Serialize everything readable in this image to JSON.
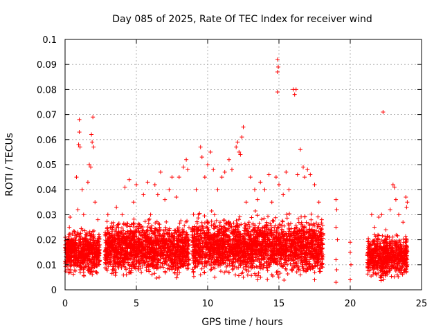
{
  "chart_data": {
    "type": "scatter",
    "title": "Day 085 of 2025, Rate Of TEC Index for receiver wind",
    "xlabel": "GPS time / hours",
    "ylabel": "ROTI / TECUs",
    "xlim": [
      0,
      25
    ],
    "ylim": [
      0,
      0.1
    ],
    "xticks": [
      0,
      5,
      10,
      15,
      20,
      25
    ],
    "yticks": [
      0,
      0.01,
      0.02,
      0.03,
      0.04,
      0.05,
      0.06,
      0.07,
      0.08,
      0.09,
      0.1
    ],
    "xtick_labels": [
      "0",
      "5",
      "10",
      "15",
      "20",
      "25"
    ],
    "ytick_labels": [
      "0",
      "0.01",
      "0.02",
      "0.03",
      "0.04",
      "0.05",
      "0.06",
      "0.07",
      "0.08",
      "0.09",
      "0.1"
    ],
    "grid": true,
    "marker": "+",
    "marker_color": "#ff0000",
    "series": [
      {
        "points": [
          [
            0.1,
            0.012
          ],
          [
            0.2,
            0.018
          ],
          [
            0.3,
            0.025
          ],
          [
            0.35,
            0.029
          ],
          [
            0.5,
            0.015
          ],
          [
            0.6,
            0.02
          ],
          [
            0.8,
            0.045
          ],
          [
            0.9,
            0.032
          ],
          [
            1.0,
            0.068
          ],
          [
            1.0,
            0.063
          ],
          [
            0.95,
            0.058
          ],
          [
            1.05,
            0.057
          ],
          [
            1.2,
            0.04
          ],
          [
            1.3,
            0.03
          ],
          [
            1.5,
            0.022
          ],
          [
            1.6,
            0.043
          ],
          [
            1.7,
            0.05
          ],
          [
            1.8,
            0.049
          ],
          [
            1.85,
            0.062
          ],
          [
            1.9,
            0.059
          ],
          [
            1.95,
            0.069
          ],
          [
            2.0,
            0.057
          ],
          [
            2.1,
            0.035
          ],
          [
            2.3,
            0.028
          ],
          [
            2.4,
            0.018
          ],
          [
            0.4,
            0.008
          ],
          [
            0.7,
            0.01
          ],
          [
            1.1,
            0.009
          ],
          [
            1.4,
            0.011
          ],
          [
            2.2,
            0.012
          ],
          [
            3.0,
            0.03
          ],
          [
            3.3,
            0.025
          ],
          [
            3.6,
            0.033
          ],
          [
            4.0,
            0.03
          ],
          [
            4.2,
            0.041
          ],
          [
            4.5,
            0.044
          ],
          [
            4.8,
            0.035
          ],
          [
            5.0,
            0.042
          ],
          [
            5.2,
            0.026
          ],
          [
            5.5,
            0.038
          ],
          [
            5.8,
            0.043
          ],
          [
            6.0,
            0.03
          ],
          [
            6.3,
            0.042
          ],
          [
            6.5,
            0.038
          ],
          [
            6.7,
            0.047
          ],
          [
            7.0,
            0.036
          ],
          [
            7.3,
            0.04
          ],
          [
            7.5,
            0.045
          ],
          [
            7.8,
            0.037
          ],
          [
            8.0,
            0.045
          ],
          [
            8.3,
            0.049
          ],
          [
            8.5,
            0.052
          ],
          [
            8.6,
            0.048
          ],
          [
            3.5,
            0.008
          ],
          [
            4.3,
            0.006
          ],
          [
            5.7,
            0.009
          ],
          [
            6.6,
            0.005
          ],
          [
            7.7,
            0.007
          ],
          [
            8.2,
            0.01
          ],
          [
            9.2,
            0.04
          ],
          [
            9.5,
            0.057
          ],
          [
            9.6,
            0.053
          ],
          [
            9.8,
            0.045
          ],
          [
            10.0,
            0.05
          ],
          [
            10.2,
            0.055
          ],
          [
            10.4,
            0.048
          ],
          [
            10.7,
            0.04
          ],
          [
            11.0,
            0.045
          ],
          [
            11.2,
            0.047
          ],
          [
            11.5,
            0.052
          ],
          [
            11.7,
            0.048
          ],
          [
            12.0,
            0.057
          ],
          [
            12.1,
            0.059
          ],
          [
            12.2,
            0.055
          ],
          [
            12.3,
            0.054
          ],
          [
            12.4,
            0.061
          ],
          [
            12.5,
            0.065
          ],
          [
            12.7,
            0.035
          ],
          [
            13.0,
            0.045
          ],
          [
            13.3,
            0.04
          ],
          [
            13.5,
            0.036
          ],
          [
            13.7,
            0.043
          ],
          [
            14.0,
            0.04
          ],
          [
            14.3,
            0.046
          ],
          [
            14.5,
            0.035
          ],
          [
            14.8,
            0.045
          ],
          [
            14.9,
            0.092
          ],
          [
            14.95,
            0.089
          ],
          [
            14.9,
            0.087
          ],
          [
            14.9,
            0.079
          ],
          [
            15.0,
            0.042
          ],
          [
            15.3,
            0.038
          ],
          [
            15.5,
            0.047
          ],
          [
            15.7,
            0.04
          ],
          [
            16.0,
            0.08
          ],
          [
            16.1,
            0.078
          ],
          [
            16.2,
            0.08
          ],
          [
            16.3,
            0.046
          ],
          [
            16.5,
            0.056
          ],
          [
            16.7,
            0.049
          ],
          [
            16.8,
            0.045
          ],
          [
            17.0,
            0.048
          ],
          [
            17.2,
            0.046
          ],
          [
            17.5,
            0.042
          ],
          [
            17.8,
            0.035
          ],
          [
            18.0,
            0.028
          ],
          [
            9.5,
            0.006
          ],
          [
            10.5,
            0.005
          ],
          [
            11.5,
            0.007
          ],
          [
            12.5,
            0.005
          ],
          [
            13.5,
            0.004
          ],
          [
            14.5,
            0.006
          ],
          [
            15.5,
            0.008
          ],
          [
            16.5,
            0.006
          ],
          [
            17.5,
            0.004
          ],
          [
            19.0,
            0.036
          ],
          [
            19.05,
            0.032
          ],
          [
            19.0,
            0.025
          ],
          [
            19.1,
            0.02
          ],
          [
            19.0,
            0.012
          ],
          [
            19.05,
            0.008
          ],
          [
            19.0,
            0.003
          ],
          [
            20.0,
            0.019
          ],
          [
            20.0,
            0.015
          ],
          [
            20.05,
            0.01
          ],
          [
            20.0,
            0.004
          ],
          [
            21.5,
            0.03
          ],
          [
            21.7,
            0.025
          ],
          [
            22.0,
            0.029
          ],
          [
            22.2,
            0.03
          ],
          [
            22.3,
            0.071
          ],
          [
            22.5,
            0.024
          ],
          [
            22.8,
            0.032
          ],
          [
            23.0,
            0.042
          ],
          [
            23.1,
            0.041
          ],
          [
            23.2,
            0.036
          ],
          [
            23.4,
            0.03
          ],
          [
            23.7,
            0.027
          ],
          [
            23.9,
            0.037
          ],
          [
            24.0,
            0.035
          ],
          [
            23.95,
            0.033
          ],
          [
            21.6,
            0.006
          ],
          [
            22.1,
            0.005
          ],
          [
            22.6,
            0.007
          ],
          [
            23.3,
            0.006
          ],
          [
            23.8,
            0.008
          ]
        ],
        "dense_bands": [
          {
            "x": [
              0.0,
              2.45
            ],
            "y": [
              0.004,
              0.026
            ]
          },
          {
            "x": [
              2.8,
              8.7
            ],
            "y": [
              0.003,
              0.03
            ]
          },
          {
            "x": [
              8.9,
              18.1
            ],
            "y": [
              0.003,
              0.032
            ]
          },
          {
            "x": [
              21.2,
              24.0
            ],
            "y": [
              0.003,
              0.024
            ]
          }
        ]
      }
    ]
  }
}
